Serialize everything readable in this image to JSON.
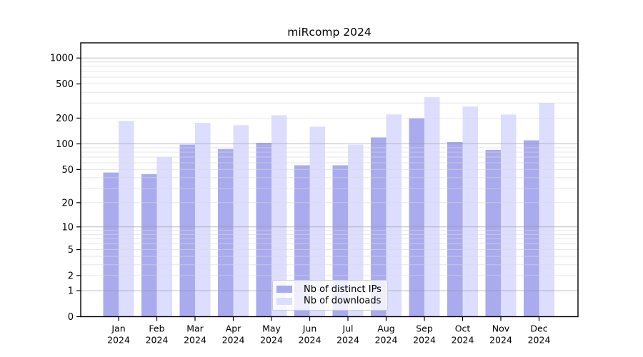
{
  "window": {
    "title": "miRcomp 2024"
  },
  "chart_data": {
    "type": "bar",
    "title": "miRcomp 2024",
    "xlabel": "",
    "ylabel": "",
    "categories": [
      "Jan 2024",
      "Feb 2024",
      "Mar 2024",
      "Apr 2024",
      "May 2024",
      "Jun 2024",
      "Jul 2024",
      "Aug 2024",
      "Sep 2024",
      "Oct 2024",
      "Nov 2024",
      "Dec 2024"
    ],
    "x_tick_labels": [
      [
        "Jan",
        "2024"
      ],
      [
        "Feb",
        "2024"
      ],
      [
        "Mar",
        "2024"
      ],
      [
        "Apr",
        "2024"
      ],
      [
        "May",
        "2024"
      ],
      [
        "Jun",
        "2024"
      ],
      [
        "Jul",
        "2024"
      ],
      [
        "Aug",
        "2024"
      ],
      [
        "Sep",
        "2024"
      ],
      [
        "Oct",
        "2024"
      ],
      [
        "Nov",
        "2024"
      ],
      [
        "Dec",
        "2024"
      ]
    ],
    "series": [
      {
        "name": "Nb of distinct IPs",
        "color": "#aaaaee",
        "values": [
          46,
          44,
          98,
          87,
          103,
          56,
          56,
          119,
          199,
          105,
          85,
          110
        ]
      },
      {
        "name": "Nb of downloads",
        "color": "#ddddff",
        "values": [
          185,
          70,
          176,
          165,
          216,
          159,
          98,
          221,
          350,
          273,
          220,
          301
        ]
      }
    ],
    "y_scale": "log10(1+y)",
    "y_ticks": [
      1000,
      500,
      200,
      100,
      50,
      20,
      10,
      5,
      2,
      1,
      0
    ],
    "y_minor_tick_multiples": [
      2,
      3,
      4,
      5,
      6,
      7,
      8,
      9
    ],
    "ylim": [
      0,
      1500
    ],
    "grid": "horizontal, minor light gray + darker lines at 1/10/100/1000, drawn over bars",
    "legend_position": "inside lower-center",
    "colors": {
      "axis": "#000000",
      "minor_gridline": "#d9d9d9",
      "major_gridline": "#999999",
      "background": "#ffffff"
    }
  }
}
